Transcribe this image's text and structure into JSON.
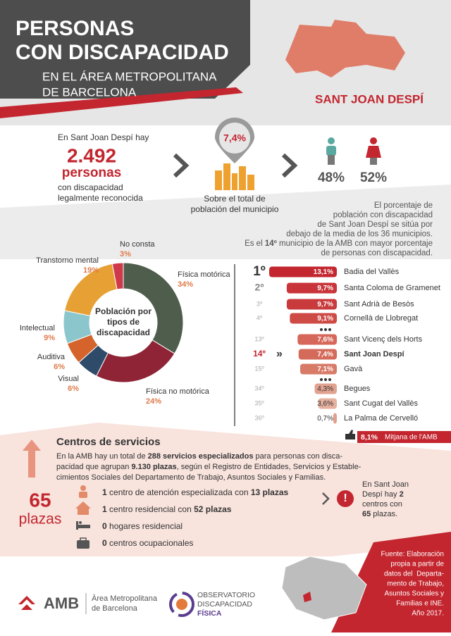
{
  "header": {
    "title": [
      "PERSONAS",
      "CON DISCAPACIDAD"
    ],
    "subtitle": [
      "EN EL ÁREA METROPOLITANA",
      "DE BARCELONA"
    ],
    "municipality": "SANT JOAN DESPÍ"
  },
  "summary": {
    "intro": "En Sant Joan Despí hay",
    "count": "2.492",
    "unit": "personas",
    "description": [
      "con discapacidad",
      "legalmente reconocida"
    ],
    "percent": "7,4%",
    "percent_label": [
      "Sobre el total de",
      "población del municipio"
    ],
    "men": "48%",
    "women": "52%"
  },
  "note": [
    [
      "El porcentaje de"
    ],
    [
      "población con discapacidad"
    ],
    [
      "de Sant Joan Despí se sitúa por"
    ],
    [
      "debajo de la media de los 36 municipios."
    ],
    [
      "Es el ",
      {
        "t": "14º",
        "b": true
      },
      " municipio de la AMB con mayor porcentaje"
    ],
    [
      "de personas con discapacidad."
    ]
  ],
  "chart_data": [
    {
      "type": "pie",
      "title": [
        "Población por",
        "tipos de",
        "discapacidad"
      ],
      "categories": [
        "Física motórica",
        "Física no motórica",
        "Visual",
        "Auditiva",
        "Intelectual",
        "Transtorno mental",
        "No consta"
      ],
      "values": [
        34,
        24,
        6,
        6,
        9,
        19,
        3
      ],
      "value_labels": [
        "34%",
        "24%",
        "6%",
        "6%",
        "9%",
        "19%",
        "3%"
      ],
      "colors": [
        "#4f5d4c",
        "#8e2435",
        "#2e4b69",
        "#d4632c",
        "#8cc6cd",
        "#e6a033",
        "#cf3a4b"
      ]
    },
    {
      "type": "bar",
      "orientation": "horizontal",
      "ranks": [
        "1º",
        "2º",
        "3º",
        "4º",
        "13º",
        "14º",
        "15º",
        "34º",
        "35º",
        "36º"
      ],
      "categories": [
        "Badia del Vallès",
        "Santa Coloma de Gramenet",
        "Sant Adrià de Besòs",
        "Cornellà de Llobregat",
        "Sant Vicenç dels Horts",
        "Sant Joan Despí",
        "Gavà",
        "Begues",
        "Sant Cugat del Vallès",
        "La Palma de Cervelló"
      ],
      "values": [
        13.1,
        9.7,
        9.7,
        9.1,
        7.6,
        7.4,
        7.1,
        4.3,
        3.6,
        0.7
      ],
      "value_labels": [
        "13,1%",
        "9,7%",
        "9,7%",
        "9,1%",
        "7,6%",
        "7,4%",
        "7,1%",
        "4,3%",
        "3,6%",
        "0,7%"
      ],
      "colors": [
        "#c3262f",
        "#c8343a",
        "#c83a3c",
        "#ce4a45",
        "#d6675a",
        "#d46a5a",
        "#d87a68",
        "#e2a290",
        "#e6b09f",
        "#e2a08c"
      ],
      "highlight": 5
    }
  ],
  "average": {
    "value": "8,1%",
    "label": "Mitjana de l'AMB"
  },
  "services": {
    "title": "Centros de servicios",
    "text": [
      [
        "En la AMB hay un total de ",
        {
          "t": "288 servicios especializados",
          "b": true
        },
        " para personas con disca-"
      ],
      [
        "pacidad que agrupan ",
        {
          "t": "9.130 plazas",
          "b": true
        },
        ", según el Registro de Entidades, Servicios y Estable-"
      ],
      [
        "cimientos Sociales del Departamento de Trabajo, Asuntos Sociales y Familias."
      ]
    ],
    "total": "65",
    "total_unit": "plazas",
    "items": [
      [
        {
          "t": "1",
          "b": true
        },
        " centro de atención especializada con ",
        {
          "t": "13 plazas",
          "b": true
        }
      ],
      [
        {
          "t": "1",
          "b": true
        },
        " centro residencial con ",
        {
          "t": "52 plazas",
          "b": true
        }
      ],
      [
        {
          "t": "0",
          "b": true
        },
        " hogares residencial"
      ],
      [
        {
          "t": "0",
          "b": true
        },
        " centros ocupacionales"
      ]
    ],
    "local_note": [
      [
        "En Sant Joan"
      ],
      [
        "Despí hay ",
        {
          "t": "2",
          "b": true
        }
      ],
      [
        "centros con"
      ],
      [
        {
          "t": "65",
          "b": true
        },
        " plazas."
      ]
    ]
  },
  "source": [
    "Fuente: Elaboración",
    "propia a partir de",
    "datos del  Departa-",
    "mento de Trabajo,",
    "Asuntos Sociales y",
    "Familias e INE.",
    "Año 2017."
  ],
  "footer": {
    "amb": "AMB",
    "amb_name": [
      "Àrea Metropolitana",
      "de Barcelona"
    ],
    "observatory": [
      "OBSERVATORIO",
      "DISCAPACIDAD"
    ],
    "observatory_bold": "FÍSICA"
  }
}
